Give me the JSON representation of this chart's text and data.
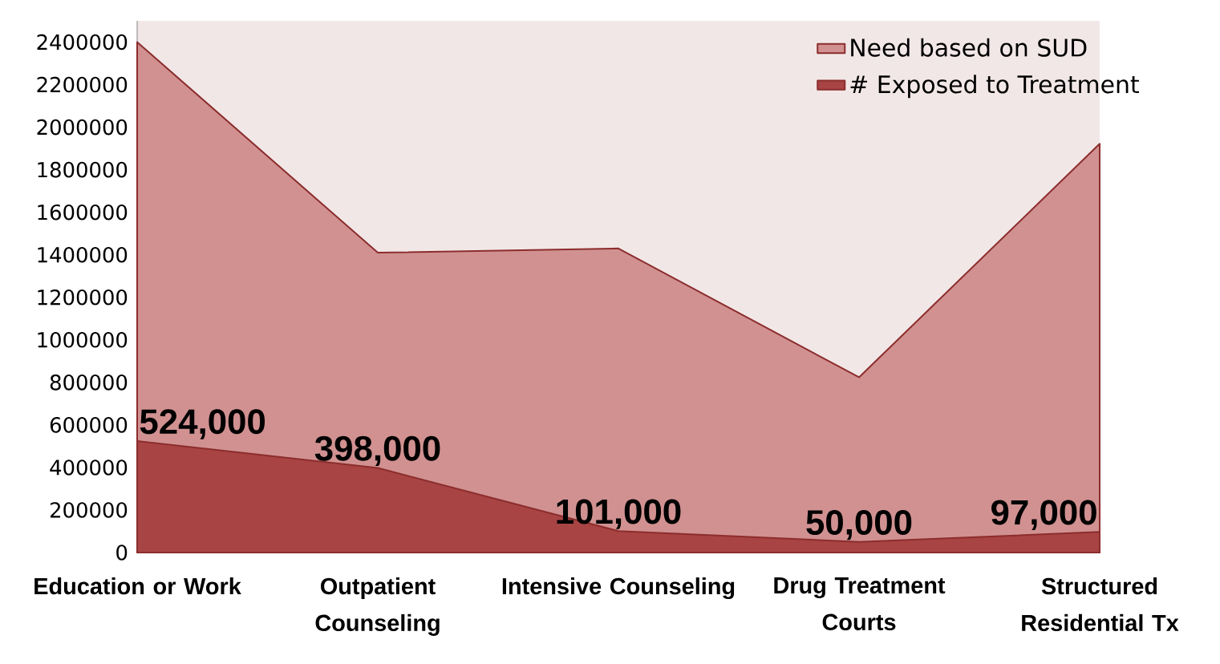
{
  "chart_data": {
    "type": "area",
    "categories": [
      "Education or Work",
      "Outpatient Counseling",
      "Intensive Counseling",
      "Drug Treatment Courts",
      "Structured Residential Tx"
    ],
    "series": [
      {
        "name": "Need based on SUD",
        "color": "#d19191",
        "values": [
          2400000,
          1410000,
          1430000,
          824000,
          1922000
        ]
      },
      {
        "name": "# Exposed to Treatment",
        "color": "#a84444",
        "values": [
          524000,
          398000,
          101000,
          50000,
          97000
        ],
        "value_labels": [
          "524,000",
          "398,000",
          "101,000",
          "50,000",
          "97,000"
        ]
      }
    ],
    "ylim": [
      0,
      2500000
    ],
    "yticks": [
      0,
      200000,
      400000,
      600000,
      800000,
      1000000,
      1200000,
      1400000,
      1600000,
      1800000,
      2000000,
      2200000,
      2400000
    ],
    "grid": false,
    "legend": "top right"
  }
}
